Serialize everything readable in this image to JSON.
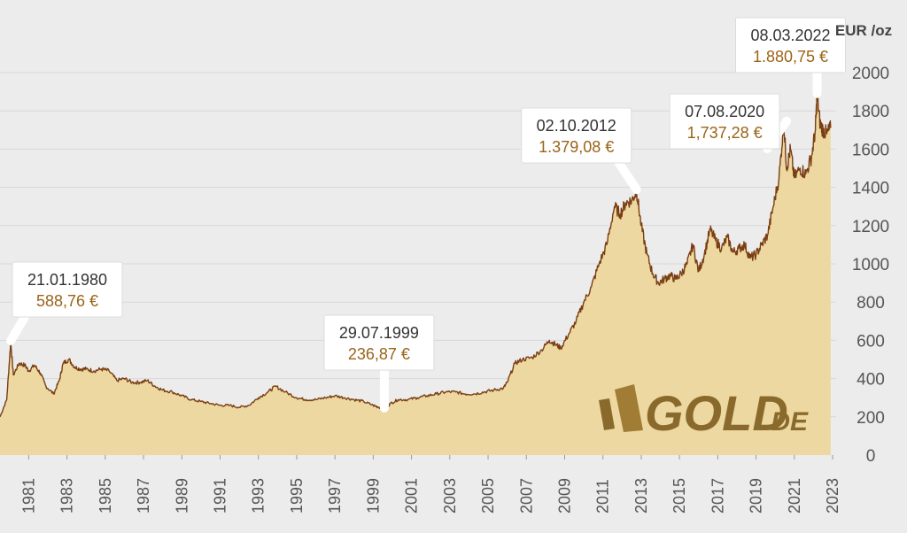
{
  "chart_data": {
    "type": "area",
    "unit_label": "EUR /oz",
    "ylim": [
      0,
      2000
    ],
    "xlim": [
      1979.5,
      2023
    ],
    "yticks": [
      "0",
      "200",
      "400",
      "600",
      "800",
      "1000",
      "1200",
      "1400",
      "1600",
      "1800",
      "2000"
    ],
    "xticks": [
      "1981",
      "1983",
      "1985",
      "1987",
      "1989",
      "1991",
      "1993",
      "1995",
      "1997",
      "1999",
      "2001",
      "2003",
      "2005",
      "2007",
      "2009",
      "2011",
      "2013",
      "2015",
      "2017",
      "2019",
      "2021",
      "2023"
    ],
    "grid": true,
    "series": [
      {
        "x": [
          1979.5,
          1979.85,
          1980.06,
          1980.2,
          1980.5,
          1980.8,
          1981.0,
          1981.3,
          1981.6,
          1981.9,
          1982.3,
          1982.6,
          1982.8,
          1983.1,
          1983.4,
          1983.7,
          1984.0,
          1984.4,
          1984.8,
          1985.2,
          1985.6,
          1986.0,
          1986.4,
          1986.8,
          1987.2,
          1987.6,
          1988.0,
          1988.5,
          1989.0,
          1989.5,
          1990.0,
          1990.5,
          1991.0,
          1991.5,
          1992.0,
          1992.5,
          1993.0,
          1993.5,
          1993.9,
          1994.4,
          1995.0,
          1995.5,
          1996.0,
          1996.5,
          1997.0,
          1997.5,
          1998.0,
          1998.5,
          1999.0,
          1999.3,
          1999.58,
          1999.9,
          2000.3,
          2000.8,
          2001.3,
          2001.8,
          2002.3,
          2002.8,
          2003.3,
          2003.8,
          2004.3,
          2004.8,
          2005.3,
          2005.8,
          2006.0,
          2006.4,
          2006.8,
          2007.3,
          2007.8,
          2008.2,
          2008.5,
          2008.8,
          2009.2,
          2009.6,
          2010.0,
          2010.4,
          2010.8,
          2011.2,
          2011.6,
          2011.9,
          2012.2,
          2012.5,
          2012.76,
          2013.0,
          2013.3,
          2013.6,
          2013.9,
          2014.2,
          2014.5,
          2014.8,
          2015.1,
          2015.4,
          2015.7,
          2016.0,
          2016.3,
          2016.6,
          2016.9,
          2017.2,
          2017.5,
          2017.8,
          2018.1,
          2018.4,
          2018.7,
          2019.0,
          2019.3,
          2019.6,
          2019.9,
          2020.2,
          2020.45,
          2020.6,
          2020.8,
          2021.0,
          2021.3,
          2021.6,
          2021.9,
          2022.1,
          2022.19,
          2022.35,
          2022.5,
          2022.7,
          2022.9
        ],
        "values": [
          200,
          290,
          589,
          420,
          480,
          470,
          440,
          470,
          430,
          360,
          320,
          390,
          480,
          500,
          460,
          450,
          450,
          440,
          450,
          440,
          390,
          400,
          380,
          380,
          390,
          360,
          340,
          330,
          310,
          290,
          280,
          270,
          260,
          260,
          250,
          260,
          300,
          330,
          360,
          330,
          300,
          290,
          290,
          300,
          310,
          300,
          290,
          280,
          260,
          250,
          237,
          270,
          290,
          290,
          300,
          310,
          320,
          330,
          330,
          320,
          320,
          330,
          340,
          350,
          380,
          480,
          500,
          510,
          550,
          600,
          580,
          560,
          630,
          700,
          800,
          880,
          1000,
          1100,
          1300,
          1260,
          1320,
          1330,
          1379,
          1200,
          1050,
          950,
          900,
          920,
          940,
          920,
          950,
          1000,
          1100,
          960,
          1050,
          1180,
          1120,
          1080,
          1140,
          1060,
          1080,
          1100,
          1030,
          1050,
          1100,
          1150,
          1300,
          1450,
          1737,
          1500,
          1600,
          1450,
          1500,
          1470,
          1560,
          1700,
          1881,
          1730,
          1700,
          1680,
          1710
        ]
      }
    ],
    "annotations": [
      {
        "date": "21.01.1980",
        "price": "588,76 €",
        "x": 1980.06,
        "y": 588.76
      },
      {
        "date": "29.07.1999",
        "price": "236,87 €",
        "x": 1999.58,
        "y": 236.87
      },
      {
        "date": "02.10.2012",
        "price": "1.379,08 €",
        "x": 2012.76,
        "y": 1379.08
      },
      {
        "date": "07.08.2020",
        "price": "1,737,28 €",
        "x": 2020.6,
        "y": 1737.28
      },
      {
        "date": "08.03.2022",
        "price": "1.880,75 €",
        "x": 2022.19,
        "y": 1880.75
      }
    ],
    "colors": {
      "fill": "#ecd8a0",
      "line": "#7a3e12",
      "callout_price": "#9a6418"
    }
  },
  "logo": {
    "main": "GOLD",
    "suffix": ".DE"
  }
}
